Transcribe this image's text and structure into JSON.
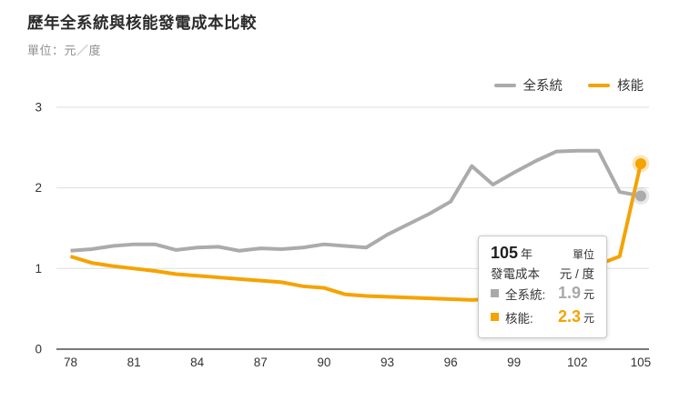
{
  "header": {
    "title": "歷年全系統與核能發電成本比較",
    "unit_note": "單位：元／度"
  },
  "legend": {
    "items": [
      {
        "label": "全系統",
        "color": "#ababab"
      },
      {
        "label": "核能",
        "color": "#f5a300"
      }
    ]
  },
  "chart_data": {
    "type": "line",
    "title": "歷年全系統與核能發電成本比較",
    "ylabel": "元/度",
    "x": [
      78,
      79,
      80,
      81,
      82,
      83,
      84,
      85,
      86,
      87,
      88,
      89,
      90,
      91,
      92,
      93,
      94,
      95,
      96,
      97,
      98,
      99,
      100,
      101,
      102,
      103,
      104,
      105
    ],
    "series": [
      {
        "name": "全系統",
        "color": "#ababab",
        "values": [
          1.22,
          1.24,
          1.28,
          1.3,
          1.3,
          1.23,
          1.26,
          1.27,
          1.22,
          1.25,
          1.24,
          1.26,
          1.3,
          1.28,
          1.26,
          1.42,
          1.55,
          1.68,
          1.83,
          2.27,
          2.04,
          2.19,
          2.33,
          2.45,
          2.46,
          2.46,
          1.95,
          1.9
        ]
      },
      {
        "name": "核能",
        "color": "#f5a300",
        "values": [
          1.15,
          1.07,
          1.03,
          1.0,
          0.97,
          0.93,
          0.91,
          0.89,
          0.87,
          0.85,
          0.83,
          0.78,
          0.76,
          0.68,
          0.66,
          0.65,
          0.64,
          0.63,
          0.62,
          0.61,
          0.62,
          0.64,
          0.67,
          0.7,
          0.75,
          1.05,
          1.15,
          2.3
        ]
      }
    ],
    "xticks": [
      78,
      81,
      84,
      87,
      90,
      93,
      96,
      99,
      102,
      105
    ],
    "yticks": [
      0,
      1,
      2,
      3
    ],
    "ylim": [
      0,
      3
    ],
    "grid": "horizontal",
    "legend_position": "top-right",
    "end_markers": true
  },
  "tooltip": {
    "year_value": "105",
    "year_suffix": "年",
    "unit_caption": "單位",
    "cost_label": "發電成本",
    "unit_value": "元 / 度",
    "rows": [
      {
        "label": "全系統:",
        "value": "1.9",
        "suffix": "元",
        "color": "#a9a9a9"
      },
      {
        "label": "核能:",
        "value": "2.3",
        "suffix": "元",
        "color": "#f5a300"
      }
    ]
  }
}
